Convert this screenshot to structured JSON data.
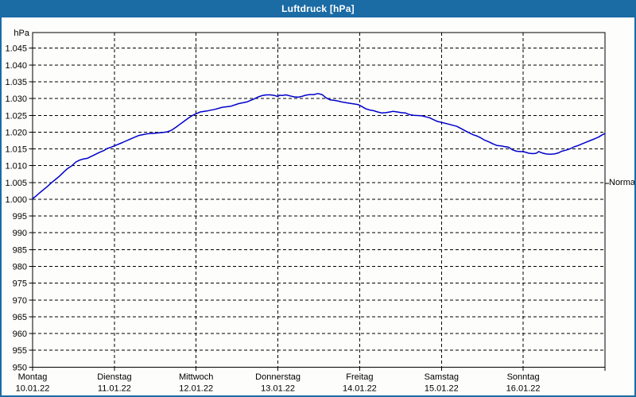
{
  "window": {
    "title": "Luftdruck [hPa]",
    "titlebar_color": "#1b6ba5",
    "border_color": "#1b6ba5",
    "background_color": "#fdfdfb"
  },
  "chart_data": {
    "type": "line",
    "title": "Luftdruck [hPa]",
    "xlabel": "",
    "ylabel": "hPa",
    "ylim": [
      950,
      1049.7
    ],
    "xlim_days": [
      0,
      7
    ],
    "grid": "dashed-black",
    "legend_position": "none",
    "line_color": "#0000cc",
    "axis_color": "#000000",
    "y_ticks": [
      {
        "value": 1045,
        "label": "1.045"
      },
      {
        "value": 1040,
        "label": "1.040"
      },
      {
        "value": 1035,
        "label": "1.035"
      },
      {
        "value": 1030,
        "label": "1.030"
      },
      {
        "value": 1025,
        "label": "1.025"
      },
      {
        "value": 1020,
        "label": "1.020"
      },
      {
        "value": 1015,
        "label": "1.015"
      },
      {
        "value": 1010,
        "label": "1.010"
      },
      {
        "value": 1005,
        "label": "1.005"
      },
      {
        "value": 1000,
        "label": "1.000"
      },
      {
        "value": 995,
        "label": "995"
      },
      {
        "value": 990,
        "label": "990"
      },
      {
        "value": 985,
        "label": "985"
      },
      {
        "value": 980,
        "label": "980"
      },
      {
        "value": 975,
        "label": "975"
      },
      {
        "value": 970,
        "label": "970"
      },
      {
        "value": 965,
        "label": "965"
      },
      {
        "value": 960,
        "label": "960"
      },
      {
        "value": 955,
        "label": "955"
      },
      {
        "value": 950,
        "label": "950"
      }
    ],
    "x_ticks": [
      {
        "day": 0,
        "label": "Montag",
        "date": "10.01.22"
      },
      {
        "day": 1,
        "label": "Dienstag",
        "date": "11.01.22"
      },
      {
        "day": 2,
        "label": "Mittwoch",
        "date": "12.01.22"
      },
      {
        "day": 3,
        "label": "Donnerstag",
        "date": "13.01.22"
      },
      {
        "day": 4,
        "label": "Freitag",
        "date": "14.01.22"
      },
      {
        "day": 5,
        "label": "Samstag",
        "date": "15.01.22"
      },
      {
        "day": 6,
        "label": "Sonntag",
        "date": "16.01.22"
      }
    ],
    "normal": {
      "label": "Normal",
      "value_hpa": 1004.7
    },
    "series": [
      {
        "name": "Luftdruck",
        "points": [
          [
            0.0,
            1000.2
          ],
          [
            0.04,
            1000.9
          ],
          [
            0.09,
            1002.0
          ],
          [
            0.14,
            1003.0
          ],
          [
            0.18,
            1003.8
          ],
          [
            0.23,
            1004.9
          ],
          [
            0.28,
            1005.9
          ],
          [
            0.33,
            1006.9
          ],
          [
            0.38,
            1008.1
          ],
          [
            0.43,
            1009.2
          ],
          [
            0.48,
            1010.0
          ],
          [
            0.53,
            1011.1
          ],
          [
            0.57,
            1011.6
          ],
          [
            0.62,
            1012.0
          ],
          [
            0.67,
            1012.2
          ],
          [
            0.72,
            1012.8
          ],
          [
            0.77,
            1013.4
          ],
          [
            0.82,
            1014.0
          ],
          [
            0.87,
            1014.5
          ],
          [
            0.91,
            1015.1
          ],
          [
            0.96,
            1015.5
          ],
          [
            1.0,
            1015.9
          ],
          [
            1.1,
            1016.9
          ],
          [
            1.2,
            1018.0
          ],
          [
            1.3,
            1019.0
          ],
          [
            1.4,
            1019.5
          ],
          [
            1.5,
            1019.7
          ],
          [
            1.6,
            1019.9
          ],
          [
            1.65,
            1020.1
          ],
          [
            1.7,
            1020.6
          ],
          [
            1.75,
            1021.4
          ],
          [
            1.8,
            1022.3
          ],
          [
            1.85,
            1023.2
          ],
          [
            1.9,
            1024.1
          ],
          [
            1.95,
            1024.9
          ],
          [
            2.0,
            1025.5
          ],
          [
            2.05,
            1026.0
          ],
          [
            2.13,
            1026.3
          ],
          [
            2.23,
            1026.8
          ],
          [
            2.32,
            1027.4
          ],
          [
            2.42,
            1027.7
          ],
          [
            2.52,
            1028.5
          ],
          [
            2.62,
            1029.0
          ],
          [
            2.66,
            1029.4
          ],
          [
            2.71,
            1029.9
          ],
          [
            2.76,
            1030.5
          ],
          [
            2.81,
            1030.9
          ],
          [
            2.86,
            1031.1
          ],
          [
            2.91,
            1031.1
          ],
          [
            2.96,
            1030.9
          ],
          [
            3.0,
            1030.6
          ],
          [
            3.02,
            1031.0
          ],
          [
            3.05,
            1030.9
          ],
          [
            3.1,
            1031.1
          ],
          [
            3.15,
            1030.8
          ],
          [
            3.2,
            1030.5
          ],
          [
            3.25,
            1030.4
          ],
          [
            3.3,
            1030.7
          ],
          [
            3.34,
            1031.0
          ],
          [
            3.39,
            1031.2
          ],
          [
            3.44,
            1031.2
          ],
          [
            3.49,
            1031.5
          ],
          [
            3.54,
            1031.2
          ],
          [
            3.59,
            1030.2
          ],
          [
            3.64,
            1029.6
          ],
          [
            3.68,
            1029.5
          ],
          [
            3.73,
            1029.3
          ],
          [
            3.78,
            1029.0
          ],
          [
            3.83,
            1028.8
          ],
          [
            3.88,
            1028.6
          ],
          [
            3.93,
            1028.4
          ],
          [
            3.98,
            1028.2
          ],
          [
            4.03,
            1027.6
          ],
          [
            4.07,
            1027.0
          ],
          [
            4.12,
            1026.6
          ],
          [
            4.17,
            1026.4
          ],
          [
            4.22,
            1026.0
          ],
          [
            4.27,
            1025.7
          ],
          [
            4.32,
            1025.8
          ],
          [
            4.37,
            1026.0
          ],
          [
            4.41,
            1026.2
          ],
          [
            4.46,
            1026.0
          ],
          [
            4.51,
            1025.8
          ],
          [
            4.56,
            1025.7
          ],
          [
            4.61,
            1025.2
          ],
          [
            4.66,
            1025.0
          ],
          [
            4.75,
            1024.9
          ],
          [
            4.85,
            1024.3
          ],
          [
            4.95,
            1023.2
          ],
          [
            5.0,
            1022.9
          ],
          [
            5.1,
            1022.3
          ],
          [
            5.19,
            1021.7
          ],
          [
            5.29,
            1020.4
          ],
          [
            5.34,
            1019.8
          ],
          [
            5.39,
            1019.2
          ],
          [
            5.43,
            1018.9
          ],
          [
            5.48,
            1018.3
          ],
          [
            5.53,
            1017.6
          ],
          [
            5.58,
            1017.1
          ],
          [
            5.63,
            1016.5
          ],
          [
            5.68,
            1016.0
          ],
          [
            5.73,
            1015.9
          ],
          [
            5.77,
            1015.7
          ],
          [
            5.82,
            1015.5
          ],
          [
            5.87,
            1014.7
          ],
          [
            5.92,
            1014.3
          ],
          [
            5.97,
            1014.2
          ],
          [
            6.0,
            1014.2
          ],
          [
            6.07,
            1013.7
          ],
          [
            6.12,
            1013.6
          ],
          [
            6.16,
            1013.7
          ],
          [
            6.19,
            1014.2
          ],
          [
            6.23,
            1013.8
          ],
          [
            6.28,
            1013.5
          ],
          [
            6.33,
            1013.4
          ],
          [
            6.38,
            1013.5
          ],
          [
            6.43,
            1013.8
          ],
          [
            6.47,
            1014.3
          ],
          [
            6.52,
            1014.6
          ],
          [
            6.57,
            1015.0
          ],
          [
            6.62,
            1015.6
          ],
          [
            6.67,
            1016.0
          ],
          [
            6.72,
            1016.5
          ],
          [
            6.77,
            1017.0
          ],
          [
            6.82,
            1017.5
          ],
          [
            6.87,
            1018.0
          ],
          [
            6.92,
            1018.5
          ],
          [
            6.96,
            1019.1
          ],
          [
            7.0,
            1019.6
          ]
        ]
      }
    ]
  }
}
